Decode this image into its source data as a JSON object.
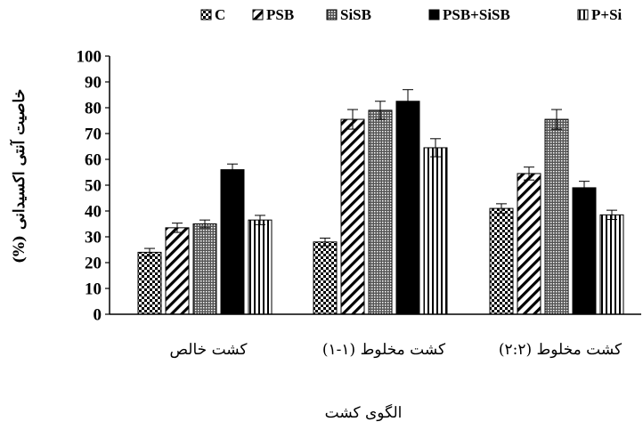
{
  "chart_data": {
    "type": "bar",
    "title": "",
    "xlabel": "الگوی کشت",
    "ylabel": "خاصیت آنتی اکسیدانی (%)",
    "ylim": [
      0,
      100
    ],
    "yticks": [
      0,
      10,
      20,
      30,
      40,
      50,
      60,
      70,
      80,
      90,
      100
    ],
    "grid": false,
    "legend_position": "top",
    "categories": [
      "کشت خالص",
      "کشت مخلوط (۱-۱)",
      "کشت مخلوط (۲:۲)"
    ],
    "series": [
      {
        "name": "C",
        "pattern": "checker",
        "values": [
          24,
          28,
          41
        ],
        "errors": [
          1.5,
          1.5,
          1.8
        ]
      },
      {
        "name": "PSB",
        "pattern": "diagonal",
        "values": [
          33.5,
          75.5,
          54.5
        ],
        "errors": [
          1.8,
          3.8,
          2.5
        ]
      },
      {
        "name": "SiSB",
        "pattern": "dots",
        "values": [
          35,
          79,
          75.5
        ],
        "errors": [
          1.5,
          3.5,
          3.8
        ]
      },
      {
        "name": "PSB+SiSB",
        "pattern": "solid",
        "values": [
          56,
          82.5,
          49
        ],
        "errors": [
          2.2,
          4.5,
          2.5
        ]
      },
      {
        "name": "P+Si",
        "pattern": "vertical",
        "values": [
          36.5,
          64.5,
          38.5
        ],
        "errors": [
          1.8,
          3.5,
          1.8
        ]
      }
    ]
  }
}
